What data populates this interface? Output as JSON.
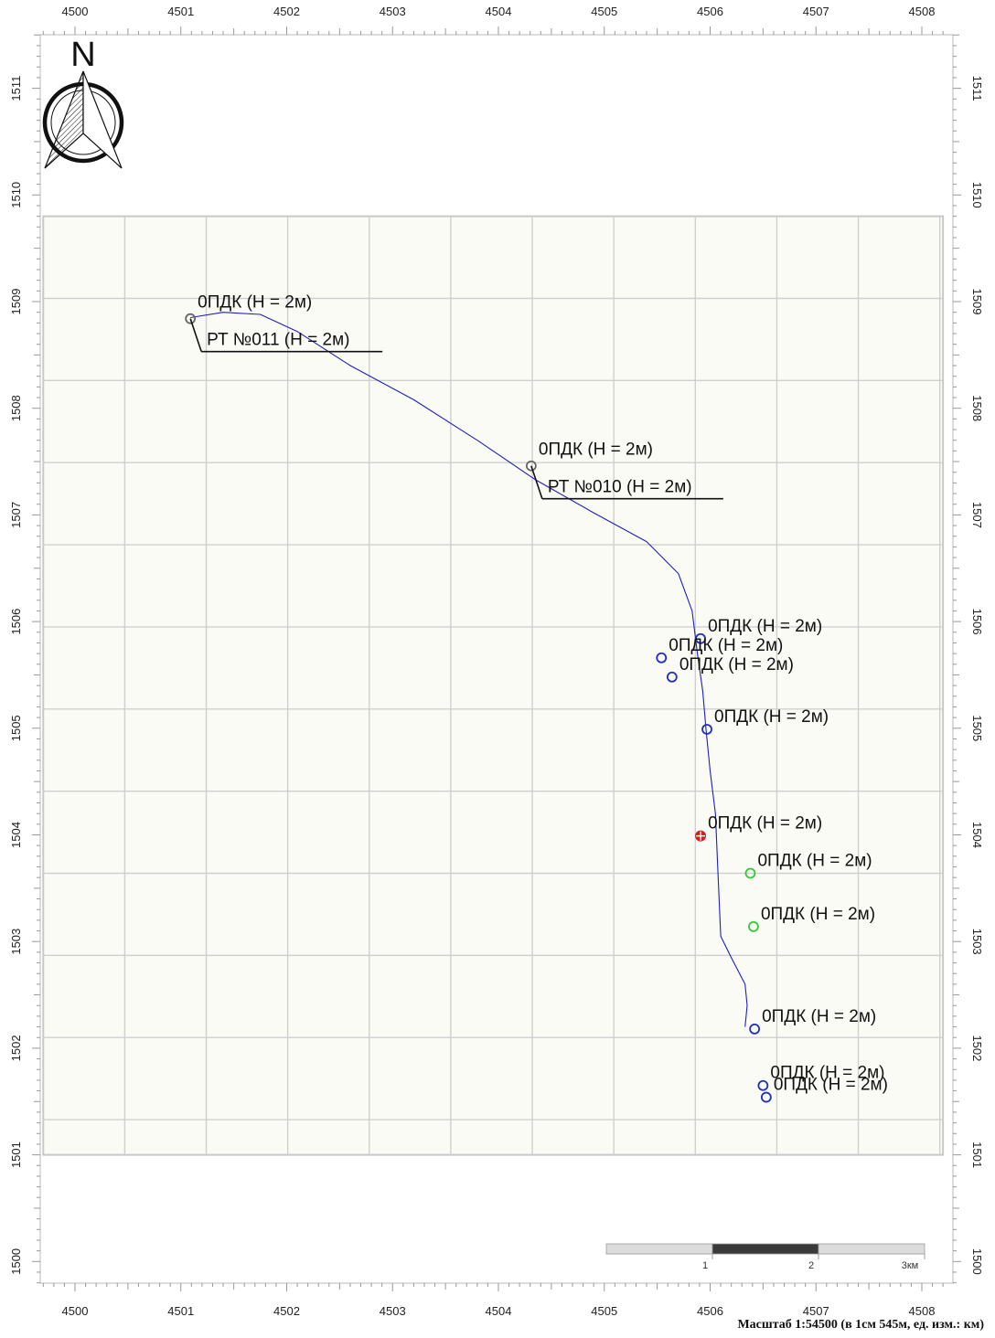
{
  "axes": {
    "x_ticks": [
      4500,
      4501,
      4502,
      4503,
      4504,
      4505,
      4506,
      4507,
      4508
    ],
    "y_ticks": [
      1500,
      1501,
      1502,
      1503,
      1504,
      1505,
      1506,
      1507,
      1508,
      1509,
      1510,
      1511
    ],
    "units": "km"
  },
  "grid": {
    "x_range": [
      4499.7,
      4508.2
    ],
    "y_range": [
      1501.0,
      1509.8
    ],
    "cell_km": 0.77
  },
  "compass": {
    "letter": "N"
  },
  "route": {
    "color": "#1f1fbf",
    "points": [
      [
        4501.09,
        1508.85
      ],
      [
        4501.4,
        1508.9
      ],
      [
        4501.75,
        1508.88
      ],
      [
        4502.1,
        1508.72
      ],
      [
        4502.6,
        1508.4
      ],
      [
        4503.2,
        1508.08
      ],
      [
        4503.8,
        1507.7
      ],
      [
        4504.35,
        1507.33
      ],
      [
        4504.9,
        1507.02
      ],
      [
        4505.4,
        1506.75
      ],
      [
        4505.7,
        1506.45
      ],
      [
        4505.83,
        1506.1
      ],
      [
        4505.88,
        1505.7
      ],
      [
        4505.93,
        1505.35
      ],
      [
        4505.96,
        1505.0
      ],
      [
        4506.0,
        1504.6
      ],
      [
        4506.05,
        1504.2
      ],
      [
        4506.08,
        1503.5
      ],
      [
        4506.1,
        1503.05
      ],
      [
        4506.2,
        1502.85
      ],
      [
        4506.33,
        1502.6
      ],
      [
        4506.35,
        1502.4
      ],
      [
        4506.33,
        1502.2
      ]
    ]
  },
  "stations": [
    {
      "id": "rt011",
      "x": 4501.09,
      "y": 1508.84,
      "color": "#666666",
      "type": "ring",
      "label": "0ПДК (H = 2м)",
      "callout": "РТ №011 (H = 2м)",
      "label_pos": "above",
      "callout_pos": "below-right"
    },
    {
      "id": "rt010",
      "x": 4504.31,
      "y": 1507.46,
      "color": "#666666",
      "type": "ring",
      "label": "0ПДК (H = 2м)",
      "callout": "РТ №010 (H = 2м)",
      "label_pos": "above",
      "callout_pos": "below-right"
    },
    {
      "id": "p1",
      "x": 4505.91,
      "y": 1505.84,
      "color": "#1f2fbf",
      "type": "ring",
      "label": "0ПДК (H = 2м)",
      "dx": 8,
      "dy": -14
    },
    {
      "id": "p2",
      "x": 4505.54,
      "y": 1505.66,
      "color": "#1f2fbf",
      "type": "ring",
      "label": "0ПДК (H = 2м)",
      "dx": 8,
      "dy": -14
    },
    {
      "id": "p3",
      "x": 4505.64,
      "y": 1505.48,
      "color": "#1f2fbf",
      "type": "ring",
      "label": "0ПДК (H = 2м)",
      "dx": 8,
      "dy": -14
    },
    {
      "id": "p4",
      "x": 4505.97,
      "y": 1504.99,
      "color": "#1f2fbf",
      "type": "ring",
      "label": "0ПДК (H = 2м)",
      "dx": 8,
      "dy": -14
    },
    {
      "id": "p5",
      "x": 4505.91,
      "y": 1503.99,
      "color": "#d42020",
      "type": "cross",
      "label": "0ПДК (H = 2м)",
      "dx": 8,
      "dy": -14
    },
    {
      "id": "p6",
      "x": 4506.38,
      "y": 1503.64,
      "color": "#2ecc2e",
      "type": "ring",
      "label": "0ПДК (H = 2м)",
      "dx": 8,
      "dy": -14
    },
    {
      "id": "p7",
      "x": 4506.41,
      "y": 1503.14,
      "color": "#2ecc2e",
      "type": "ring",
      "label": "0ПДК (H = 2м)",
      "dx": 8,
      "dy": -14
    },
    {
      "id": "p8",
      "x": 4506.42,
      "y": 1502.18,
      "color": "#1f2fbf",
      "type": "ring",
      "label": "0ПДК (H = 2м)",
      "dx": 8,
      "dy": -14
    },
    {
      "id": "p9",
      "x": 4506.5,
      "y": 1501.65,
      "color": "#1f2fbf",
      "type": "ring",
      "label": "0ПДК (H = 2м)",
      "dx": 8,
      "dy": -14
    },
    {
      "id": "p10",
      "x": 4506.53,
      "y": 1501.54,
      "color": "#1f2fbf",
      "type": "ring",
      "label": "0ПДК (H = 2м)",
      "dx": 8,
      "dy": -14
    }
  ],
  "scale_bar": {
    "labels": [
      "1",
      "2",
      "3км"
    ]
  },
  "caption": "Масштаб 1:54500 (в 1см 545м, ед. изм.: км)"
}
